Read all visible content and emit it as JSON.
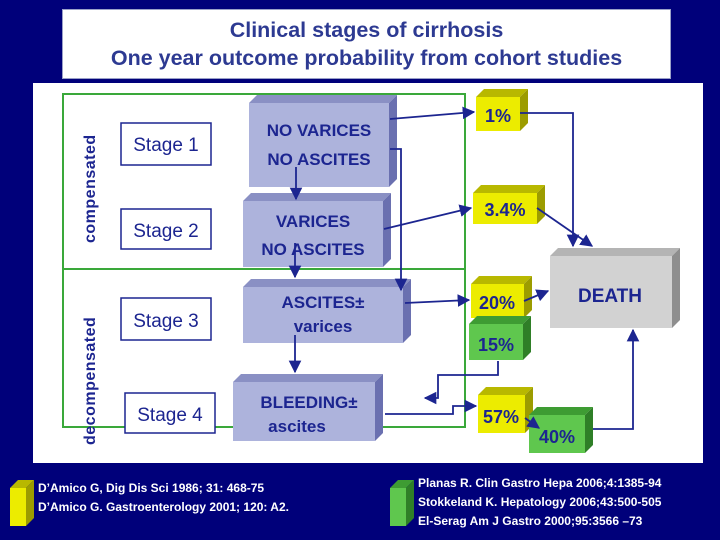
{
  "title": {
    "line1": "Clinical stages of cirrhosis",
    "line2": "One year outcome probability from cohort studies"
  },
  "groups": {
    "compensated": "compensated",
    "decompensated": "decompensated"
  },
  "stages": [
    "Stage 1",
    "Stage 2",
    "Stage 3",
    "Stage 4"
  ],
  "conditions": [
    {
      "line1": "NO VARICES",
      "line2": "NO ASCITES"
    },
    {
      "line1": "VARICES",
      "line2": "NO ASCITES"
    },
    {
      "line1": "ASCITES±",
      "line2": "varices"
    },
    {
      "line1": "BLEEDING±",
      "line2": "ascites"
    }
  ],
  "death_probabilities": [
    "1%",
    "3.4%",
    "20%",
    "57%"
  ],
  "progression_probabilities": [
    "15%",
    "40%"
  ],
  "outcome": "DEATH",
  "references_left": [
    "D’Amico G, Dig Dis Sci 1986; 31: 468-75",
    "D’Amico G. Gastroenterology 2001; 120: A2."
  ],
  "references_right": [
    "Planas R. Clin Gastro Hepa 2006;4:1385-94",
    "Stokkeland K. Hepatology 2006;43:500-505",
    "El-Serag Am J Gastro 2000;95:3566 –73"
  ],
  "colors": {
    "background": "#00007a",
    "title_text": "#2d3a92",
    "condition_box": "#adb3dc",
    "death_box": "#d2d2d2",
    "yellow": "#ecec00",
    "green": "#5fc74e",
    "group_border": "#3aa83a",
    "text": "#1c2590"
  }
}
